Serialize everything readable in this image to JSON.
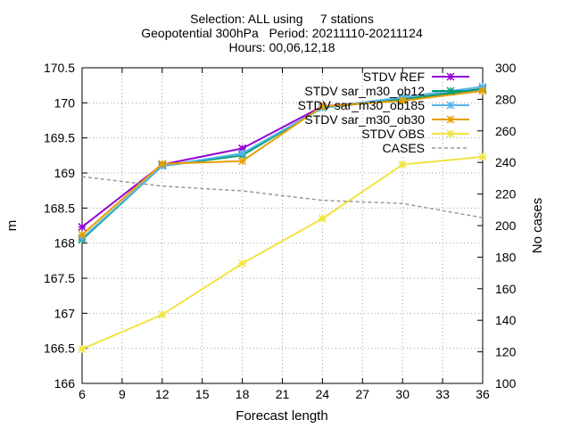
{
  "chart_data": {
    "type": "line",
    "title_lines": [
      "Selection: ALL using     7 stations",
      "Geopotential 300hPa   Period: 20211110-20211124",
      "Hours: 00,06,12,18"
    ],
    "xlabel": "Forecast length",
    "ylabel": "m",
    "y2label": "No cases",
    "x": [
      6,
      12,
      18,
      24,
      30,
      36
    ],
    "xticks": [
      6,
      9,
      12,
      15,
      18,
      21,
      24,
      27,
      30,
      33,
      36
    ],
    "xlim": [
      6,
      36
    ],
    "ylim": [
      166,
      170.5
    ],
    "yticks": [
      166,
      166.5,
      167,
      167.5,
      168,
      168.5,
      169,
      169.5,
      170,
      170.5
    ],
    "y2lim": [
      100,
      300
    ],
    "y2ticks": [
      100,
      120,
      140,
      160,
      180,
      200,
      220,
      240,
      260,
      280,
      300
    ],
    "grid": true,
    "legend_position": "top-right",
    "series": [
      {
        "name": "STDV REF",
        "color": "#9400d3",
        "marker": "x-star",
        "axis": "y",
        "dashed": false,
        "values": [
          168.23,
          169.12,
          169.35,
          169.95,
          170.05,
          170.2
        ]
      },
      {
        "name": "STDV sar_m30_ob12",
        "color": "#009e73",
        "marker": "x-star",
        "axis": "y",
        "dashed": false,
        "values": [
          168.05,
          169.1,
          169.25,
          169.93,
          170.05,
          170.2
        ]
      },
      {
        "name": "STDV sar_m30_ob185",
        "color": "#56b4e9",
        "marker": "x-star",
        "axis": "y",
        "dashed": false,
        "values": [
          168.07,
          169.1,
          169.28,
          169.93,
          170.08,
          170.23
        ]
      },
      {
        "name": "STDV sar_m30_ob30",
        "color": "#e69f00",
        "marker": "x-star",
        "axis": "y",
        "dashed": false,
        "values": [
          168.12,
          169.13,
          169.17,
          169.95,
          170.03,
          170.17
        ]
      },
      {
        "name": "STDV OBS",
        "color": "#f0e442",
        "marker": "x-star",
        "axis": "y",
        "dashed": false,
        "values": [
          166.49,
          166.98,
          167.71,
          168.35,
          169.12,
          169.23
        ]
      },
      {
        "name": "CASES",
        "color": "#999999",
        "marker": "none",
        "axis": "y2",
        "dashed": true,
        "values": [
          231,
          225,
          222,
          216,
          214,
          205
        ]
      }
    ]
  }
}
